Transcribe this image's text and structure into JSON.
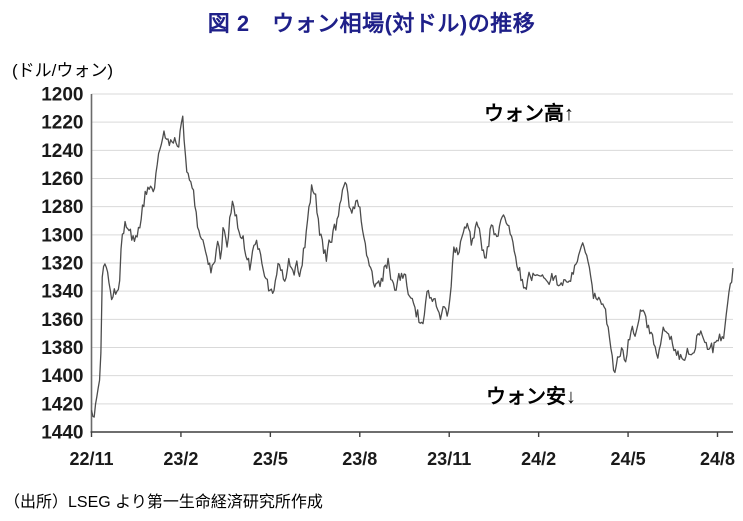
{
  "title": {
    "text": "図 2　ウォン相場(対ドル)の推移"
  },
  "axis_unit_label": "(ドル/ウォン)",
  "annotations": {
    "won_high": "ウォン高↑",
    "won_low": "ウォン安↓"
  },
  "source": "（出所）LSEG より第一生命経済研究所作成",
  "colors": {
    "title": "#1f2089",
    "line": "#4c4c4c",
    "grid": "#d9d9d9",
    "axis_y": "#6b6b6b",
    "axis_x": "#3f3f3f",
    "tick_text": "#1a1a1a"
  },
  "chart_data": {
    "type": "line",
    "title": "図 2　ウォン相場(対ドル)の推移",
    "ylabel": "(ドル/ウォン)",
    "xlabel": "",
    "legend": false,
    "grid": "horizontal",
    "y_axis": {
      "min": 1200,
      "max": 1440,
      "tick_step": 20,
      "inverted": true,
      "ticks": [
        1200,
        1220,
        1240,
        1260,
        1280,
        1300,
        1320,
        1340,
        1360,
        1380,
        1400,
        1420,
        1440
      ]
    },
    "x_axis": {
      "tick_labels": [
        "22/11",
        "23/2",
        "23/5",
        "23/8",
        "23/11",
        "24/2",
        "24/5",
        "24/8"
      ],
      "tick_months": [
        0,
        3,
        6,
        9,
        12,
        15,
        18,
        21
      ],
      "domain_months": [
        0,
        21.52
      ]
    },
    "annotations": [
      "ウォン高↑",
      "ウォン安↓"
    ],
    "series": [
      {
        "name": "ウォン相場(対ドル)",
        "points_month_value": [
          [
            0.0,
            1424
          ],
          [
            0.08,
            1431
          ],
          [
            0.2,
            1412
          ],
          [
            0.3,
            1400
          ],
          [
            0.37,
            1318
          ],
          [
            0.48,
            1322
          ],
          [
            0.58,
            1331
          ],
          [
            0.67,
            1352
          ],
          [
            0.8,
            1340
          ],
          [
            0.92,
            1343
          ],
          [
            1.03,
            1299
          ],
          [
            1.15,
            1292
          ],
          [
            1.32,
            1304
          ],
          [
            1.5,
            1303
          ],
          [
            1.63,
            1290
          ],
          [
            1.8,
            1273
          ],
          [
            1.95,
            1265
          ],
          [
            2.06,
            1272
          ],
          [
            2.22,
            1248
          ],
          [
            2.35,
            1232
          ],
          [
            2.5,
            1227
          ],
          [
            2.62,
            1235
          ],
          [
            2.75,
            1230
          ],
          [
            2.88,
            1233
          ],
          [
            3.0,
            1221
          ],
          [
            3.06,
            1216
          ],
          [
            3.16,
            1250
          ],
          [
            3.3,
            1266
          ],
          [
            3.44,
            1272
          ],
          [
            3.56,
            1296
          ],
          [
            3.7,
            1300
          ],
          [
            3.82,
            1310
          ],
          [
            3.94,
            1322
          ],
          [
            4.1,
            1324
          ],
          [
            4.22,
            1302
          ],
          [
            4.32,
            1320
          ],
          [
            4.42,
            1298
          ],
          [
            4.55,
            1312
          ],
          [
            4.7,
            1282
          ],
          [
            4.76,
            1278
          ],
          [
            4.88,
            1293
          ],
          [
            5.02,
            1302
          ],
          [
            5.2,
            1315
          ],
          [
            5.33,
            1323
          ],
          [
            5.46,
            1302
          ],
          [
            5.52,
            1298
          ],
          [
            5.65,
            1311
          ],
          [
            5.8,
            1328
          ],
          [
            5.92,
            1334
          ],
          [
            6.04,
            1341
          ],
          [
            6.1,
            1343
          ],
          [
            6.25,
            1322
          ],
          [
            6.38,
            1326
          ],
          [
            6.5,
            1336
          ],
          [
            6.62,
            1318
          ],
          [
            6.74,
            1326
          ],
          [
            6.88,
            1321
          ],
          [
            7.0,
            1327
          ],
          [
            7.12,
            1308
          ],
          [
            7.24,
            1292
          ],
          [
            7.38,
            1271
          ],
          [
            7.52,
            1274
          ],
          [
            7.64,
            1298
          ],
          [
            7.76,
            1307
          ],
          [
            7.88,
            1318
          ],
          [
            8.0,
            1307
          ],
          [
            8.12,
            1300
          ],
          [
            8.26,
            1288
          ],
          [
            8.4,
            1270
          ],
          [
            8.54,
            1260
          ],
          [
            8.66,
            1280
          ],
          [
            8.76,
            1285
          ],
          [
            8.88,
            1275
          ],
          [
            9.0,
            1279
          ],
          [
            9.1,
            1299
          ],
          [
            9.24,
            1313
          ],
          [
            9.4,
            1328
          ],
          [
            9.54,
            1341
          ],
          [
            9.68,
            1340
          ],
          [
            9.82,
            1328
          ],
          [
            9.96,
            1322
          ],
          [
            10.1,
            1331
          ],
          [
            10.24,
            1335
          ],
          [
            10.4,
            1325
          ],
          [
            10.56,
            1330
          ],
          [
            10.72,
            1341
          ],
          [
            10.86,
            1349
          ],
          [
            11.0,
            1356
          ],
          [
            11.12,
            1363
          ],
          [
            11.28,
            1340
          ],
          [
            11.42,
            1349
          ],
          [
            11.56,
            1347
          ],
          [
            11.7,
            1360
          ],
          [
            11.86,
            1352
          ],
          [
            12.0,
            1357
          ],
          [
            12.14,
            1307
          ],
          [
            12.3,
            1313
          ],
          [
            12.46,
            1300
          ],
          [
            12.6,
            1292
          ],
          [
            12.76,
            1305
          ],
          [
            12.92,
            1290
          ],
          [
            13.08,
            1305
          ],
          [
            13.24,
            1317
          ],
          [
            13.4,
            1296
          ],
          [
            13.58,
            1303
          ],
          [
            13.78,
            1289
          ],
          [
            13.95,
            1289
          ],
          [
            14.1,
            1303
          ],
          [
            14.3,
            1322
          ],
          [
            14.52,
            1344
          ],
          [
            14.7,
            1332
          ],
          [
            14.9,
            1336
          ],
          [
            15.1,
            1331
          ],
          [
            15.3,
            1336
          ],
          [
            15.5,
            1330
          ],
          [
            15.72,
            1334
          ],
          [
            15.92,
            1331
          ],
          [
            16.12,
            1329
          ],
          [
            16.3,
            1319
          ],
          [
            16.46,
            1309
          ],
          [
            16.64,
            1317
          ],
          [
            16.84,
            1340
          ],
          [
            17.02,
            1347
          ],
          [
            17.2,
            1352
          ],
          [
            17.4,
            1375
          ],
          [
            17.5,
            1394
          ],
          [
            17.56,
            1400
          ],
          [
            17.66,
            1383
          ],
          [
            17.8,
            1377
          ],
          [
            17.94,
            1382
          ],
          [
            18.1,
            1362
          ],
          [
            18.24,
            1370
          ],
          [
            18.4,
            1352
          ],
          [
            18.56,
            1358
          ],
          [
            18.72,
            1369
          ],
          [
            18.86,
            1378
          ],
          [
            19.0,
            1385
          ],
          [
            19.16,
            1371
          ],
          [
            19.32,
            1368
          ],
          [
            19.5,
            1379
          ],
          [
            19.7,
            1388
          ],
          [
            19.86,
            1391
          ],
          [
            20.02,
            1381
          ],
          [
            20.12,
            1390
          ],
          [
            20.36,
            1372
          ],
          [
            20.56,
            1382
          ],
          [
            20.78,
            1387
          ],
          [
            20.98,
            1377
          ],
          [
            21.08,
            1371
          ],
          [
            21.18,
            1376
          ],
          [
            21.3,
            1360
          ],
          [
            21.42,
            1338
          ],
          [
            21.52,
            1326
          ]
        ]
      }
    ]
  }
}
